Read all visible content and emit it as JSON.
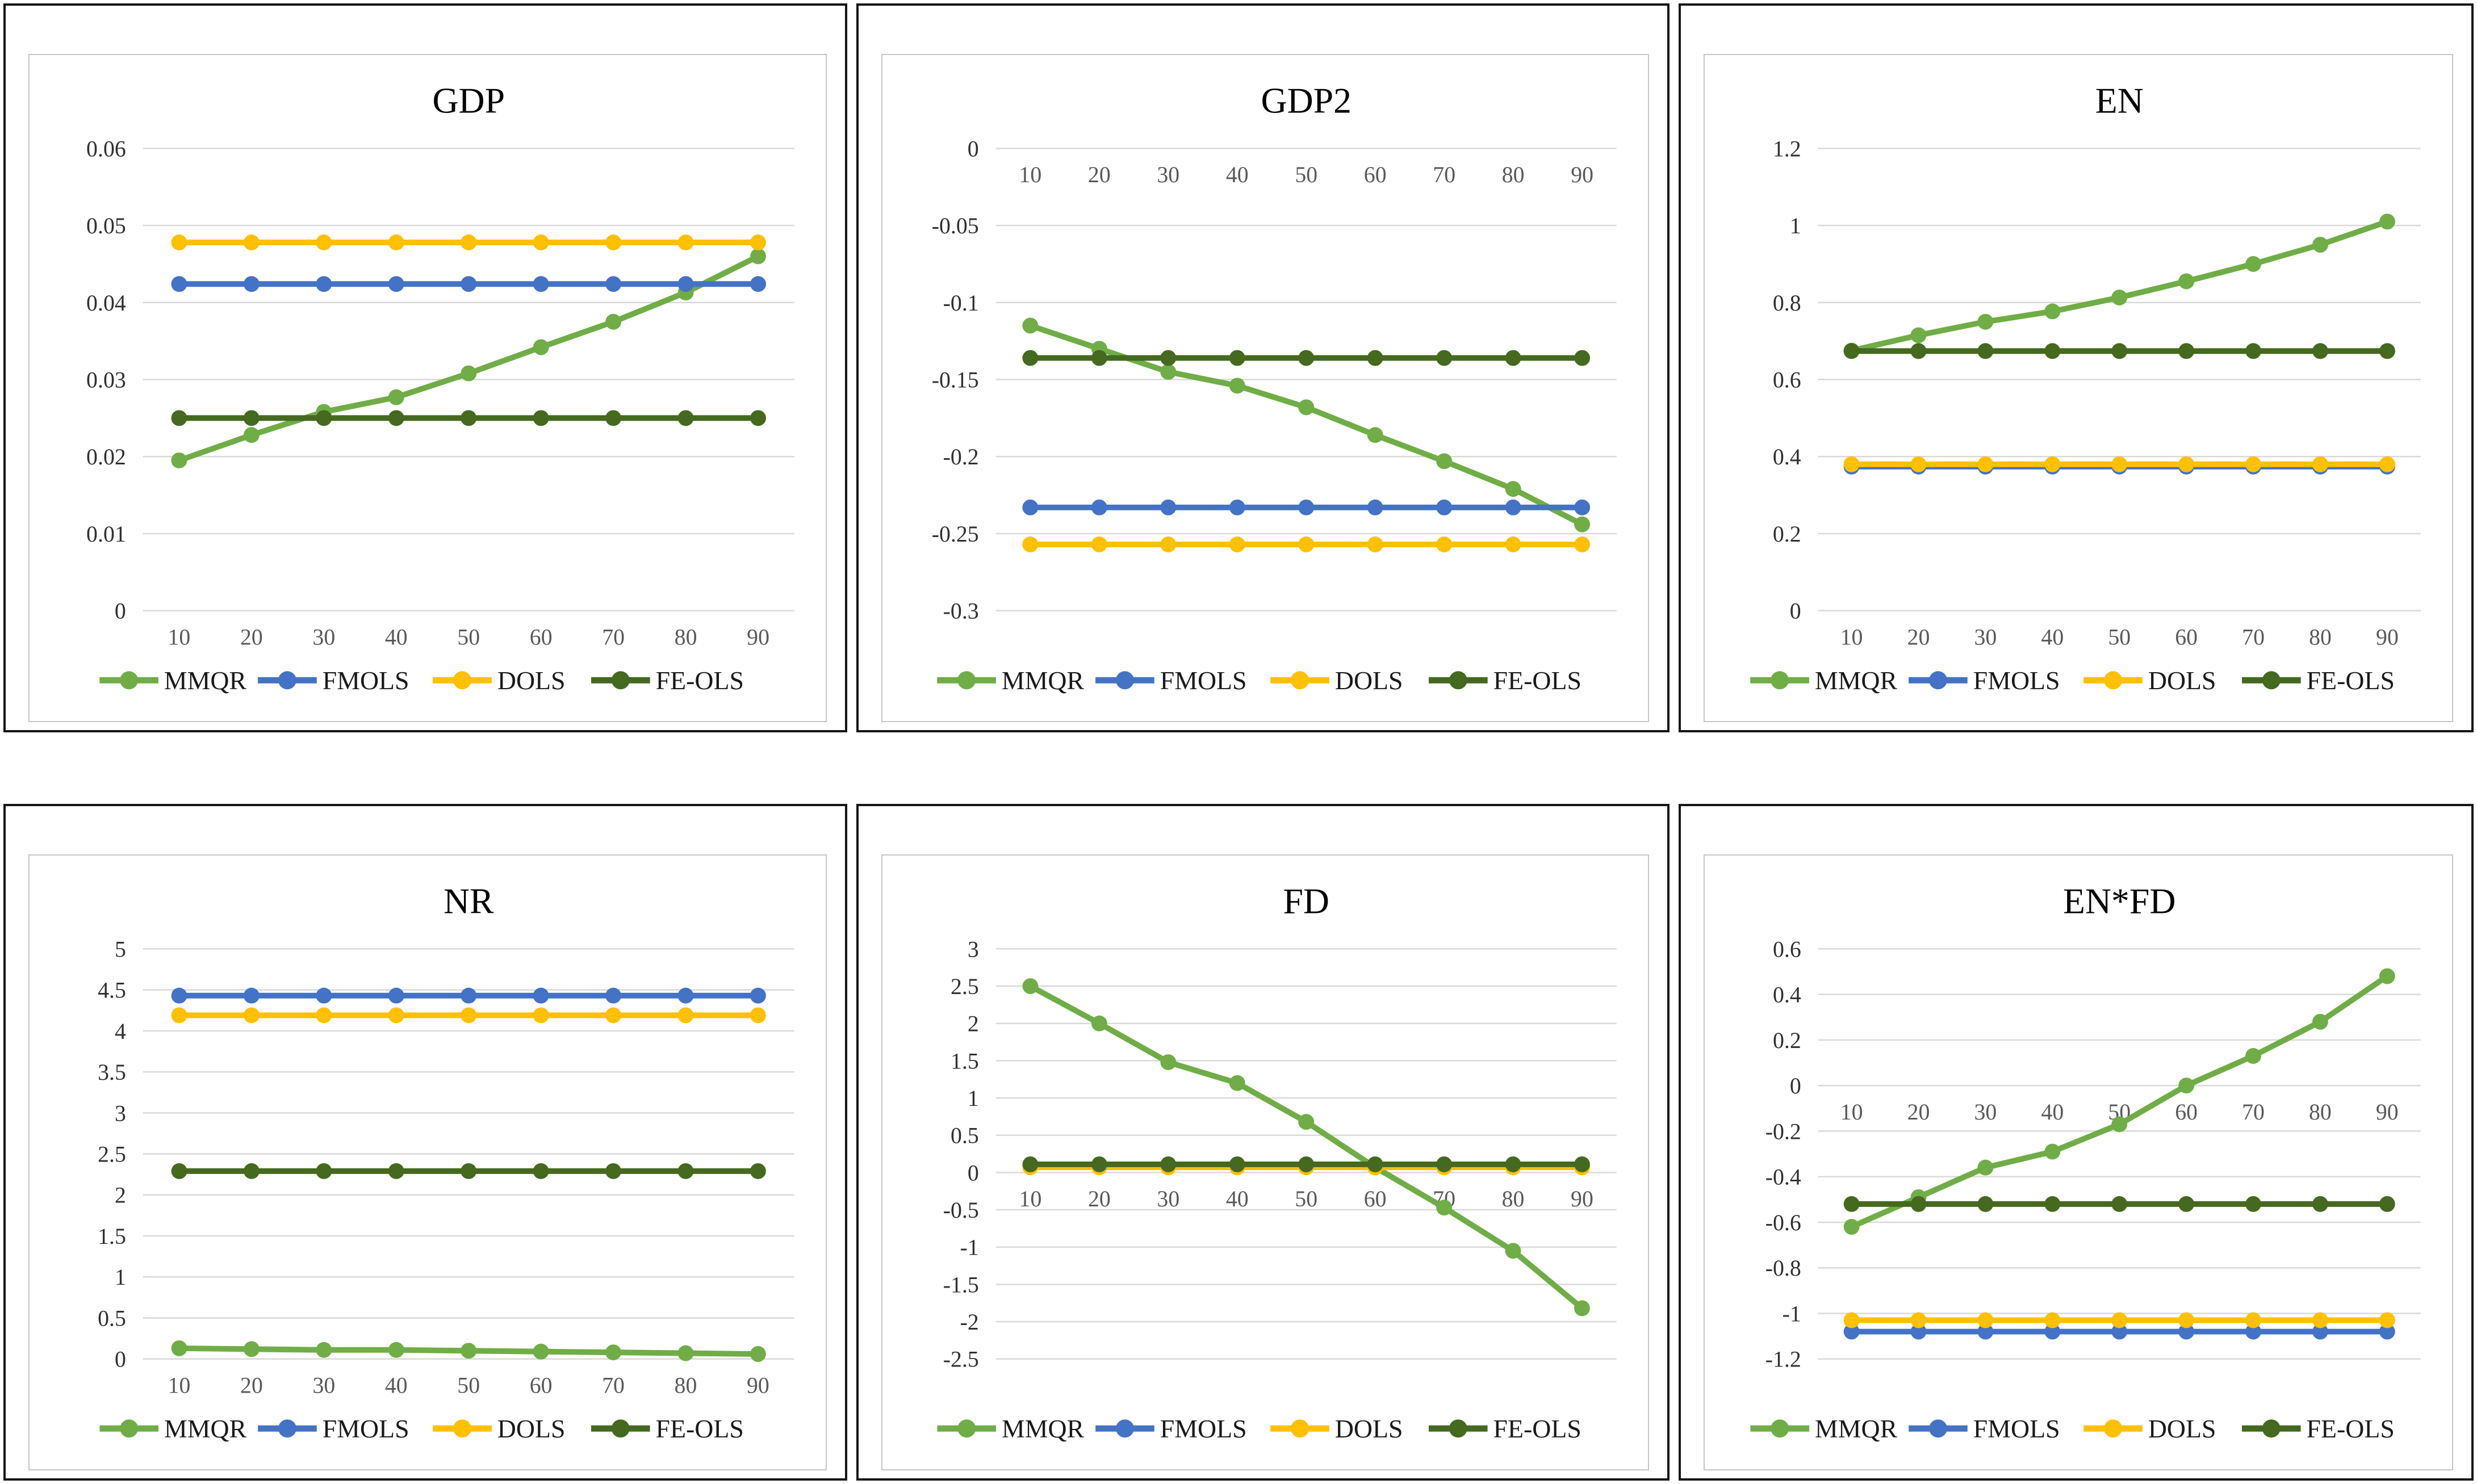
{
  "colors": {
    "MMQR": "#70AD47",
    "FMOLS": "#4472C4",
    "DOLS": "#FFC000",
    "FE-OLS": "#44691F"
  },
  "styles": {
    "background": "#FFFFFF",
    "cell_border": "#161616",
    "chart_border": "#C6C6C6",
    "gridline": "#D9D9D9",
    "y_tick_label": "#303030",
    "x_tick_label": "#595959",
    "title": "#000000",
    "legend_text": "#1A1A1A"
  },
  "legend_entries": [
    "MMQR",
    "FMOLS",
    "DOLS",
    "FE-OLS"
  ],
  "chart_data": [
    {
      "type": "line",
      "title": "GDP",
      "x": [
        10,
        20,
        30,
        40,
        50,
        60,
        70,
        80,
        90
      ],
      "ylim": [
        0,
        0.06
      ],
      "yticks": [
        0.06,
        0.05,
        0.04,
        0.03,
        0.02,
        0.01,
        0
      ],
      "ytick_labels": [
        "0.06",
        "0.05",
        "0.04",
        "0.03",
        "0.02",
        "0.01",
        "0"
      ],
      "grid": true,
      "legend_position": "bottom",
      "x_labels_at_zero_line": true,
      "series": [
        {
          "name": "MMQR",
          "values": [
            0.0195,
            0.0228,
            0.0258,
            0.0277,
            0.0308,
            0.0342,
            0.0375,
            0.0413,
            0.046
          ]
        },
        {
          "name": "FMOLS",
          "values": [
            0.0424,
            0.0424,
            0.0424,
            0.0424,
            0.0424,
            0.0424,
            0.0424,
            0.0424,
            0.0424
          ]
        },
        {
          "name": "DOLS",
          "values": [
            0.0478,
            0.0478,
            0.0478,
            0.0478,
            0.0478,
            0.0478,
            0.0478,
            0.0478,
            0.0478
          ]
        },
        {
          "name": "FE-OLS",
          "values": [
            0.025,
            0.025,
            0.025,
            0.025,
            0.025,
            0.025,
            0.025,
            0.025,
            0.025
          ]
        }
      ]
    },
    {
      "type": "line",
      "title": "GDP2",
      "x": [
        10,
        20,
        30,
        40,
        50,
        60,
        70,
        80,
        90
      ],
      "ylim": [
        -0.3,
        0
      ],
      "yticks": [
        0,
        -0.05,
        -0.1,
        -0.15,
        -0.2,
        -0.25,
        -0.3
      ],
      "ytick_labels": [
        "0",
        "-0.05",
        "-0.1",
        "-0.15",
        "-0.2",
        "-0.25",
        "-0.3"
      ],
      "grid": true,
      "legend_position": "bottom",
      "x_labels_at_zero_line": true,
      "series": [
        {
          "name": "MMQR",
          "values": [
            -0.115,
            -0.13,
            -0.145,
            -0.154,
            -0.168,
            -0.186,
            -0.203,
            -0.221,
            -0.244
          ]
        },
        {
          "name": "FMOLS",
          "values": [
            -0.233,
            -0.233,
            -0.233,
            -0.233,
            -0.233,
            -0.233,
            -0.233,
            -0.233,
            -0.233
          ]
        },
        {
          "name": "DOLS",
          "values": [
            -0.257,
            -0.257,
            -0.257,
            -0.257,
            -0.257,
            -0.257,
            -0.257,
            -0.257,
            -0.257
          ]
        },
        {
          "name": "FE-OLS",
          "values": [
            -0.136,
            -0.136,
            -0.136,
            -0.136,
            -0.136,
            -0.136,
            -0.136,
            -0.136,
            -0.136
          ]
        }
      ]
    },
    {
      "type": "line",
      "title": "EN",
      "x": [
        10,
        20,
        30,
        40,
        50,
        60,
        70,
        80,
        90
      ],
      "ylim": [
        0,
        1.2
      ],
      "yticks": [
        1.2,
        1,
        0.8,
        0.6,
        0.4,
        0.2,
        0
      ],
      "ytick_labels": [
        "1.2",
        "1",
        "0.8",
        "0.6",
        "0.4",
        "0.2",
        "0"
      ],
      "grid": true,
      "legend_position": "bottom",
      "x_labels_at_zero_line": true,
      "series": [
        {
          "name": "MMQR",
          "values": [
            0.675,
            0.715,
            0.75,
            0.777,
            0.813,
            0.855,
            0.9,
            0.95,
            1.01
          ]
        },
        {
          "name": "FMOLS",
          "values": [
            0.374,
            0.374,
            0.374,
            0.374,
            0.374,
            0.374,
            0.374,
            0.374,
            0.374
          ]
        },
        {
          "name": "DOLS",
          "values": [
            0.38,
            0.38,
            0.38,
            0.38,
            0.38,
            0.38,
            0.38,
            0.38,
            0.38
          ]
        },
        {
          "name": "FE-OLS",
          "values": [
            0.674,
            0.674,
            0.674,
            0.674,
            0.674,
            0.674,
            0.674,
            0.674,
            0.674
          ]
        }
      ]
    },
    {
      "type": "line",
      "title": "NR",
      "x": [
        10,
        20,
        30,
        40,
        50,
        60,
        70,
        80,
        90
      ],
      "ylim": [
        0,
        5
      ],
      "yticks": [
        5,
        4.5,
        4,
        3.5,
        3,
        2.5,
        2,
        1.5,
        1,
        0.5,
        0
      ],
      "ytick_labels": [
        "5",
        "4.5",
        "4",
        "3.5",
        "3",
        "2.5",
        "2",
        "1.5",
        "1",
        "0.5",
        "0"
      ],
      "grid": true,
      "legend_position": "bottom",
      "x_labels_at_zero_line": true,
      "series": [
        {
          "name": "MMQR",
          "values": [
            0.13,
            0.12,
            0.11,
            0.11,
            0.1,
            0.09,
            0.08,
            0.07,
            0.06
          ]
        },
        {
          "name": "FMOLS",
          "values": [
            4.43,
            4.43,
            4.43,
            4.43,
            4.43,
            4.43,
            4.43,
            4.43,
            4.43
          ]
        },
        {
          "name": "DOLS",
          "values": [
            4.19,
            4.19,
            4.19,
            4.19,
            4.19,
            4.19,
            4.19,
            4.19,
            4.19
          ]
        },
        {
          "name": "FE-OLS",
          "values": [
            2.29,
            2.29,
            2.29,
            2.29,
            2.29,
            2.29,
            2.29,
            2.29,
            2.29
          ]
        }
      ]
    },
    {
      "type": "line",
      "title": "FD",
      "x": [
        10,
        20,
        30,
        40,
        50,
        60,
        70,
        80,
        90
      ],
      "ylim": [
        -2.5,
        3
      ],
      "yticks": [
        3,
        2.5,
        2,
        1.5,
        1,
        0.5,
        0,
        -0.5,
        -1,
        -1.5,
        -2,
        -2.5
      ],
      "ytick_labels": [
        "3",
        "2.5",
        "2",
        "1.5",
        "1",
        "0.5",
        "0",
        "-0.5",
        "-1",
        "-1.5",
        "-2",
        "-2.5"
      ],
      "grid": true,
      "legend_position": "bottom",
      "x_labels_at_zero_line": true,
      "series": [
        {
          "name": "MMQR",
          "values": [
            2.5,
            2.0,
            1.48,
            1.2,
            0.68,
            0.07,
            -0.47,
            -1.05,
            -1.82
          ]
        },
        {
          "name": "FMOLS",
          "values": [
            0.08,
            0.08,
            0.08,
            0.08,
            0.08,
            0.08,
            0.08,
            0.08,
            0.08
          ]
        },
        {
          "name": "DOLS",
          "values": [
            0.07,
            0.07,
            0.07,
            0.07,
            0.07,
            0.07,
            0.07,
            0.07,
            0.07
          ]
        },
        {
          "name": "FE-OLS",
          "values": [
            0.11,
            0.11,
            0.11,
            0.11,
            0.11,
            0.11,
            0.11,
            0.11,
            0.11
          ]
        }
      ]
    },
    {
      "type": "line",
      "title": "EN*FD",
      "x": [
        10,
        20,
        30,
        40,
        50,
        60,
        70,
        80,
        90
      ],
      "ylim": [
        -1.2,
        0.6
      ],
      "yticks": [
        0.6,
        0.4,
        0.2,
        0,
        -0.2,
        -0.4,
        -0.6,
        -0.8,
        -1,
        -1.2
      ],
      "ytick_labels": [
        "0.6",
        "0.4",
        "0.2",
        "0",
        "-0.2",
        "-0.4",
        "-0.6",
        "-0.8",
        "-1",
        "-1.2"
      ],
      "grid": true,
      "legend_position": "bottom",
      "x_labels_at_zero_line": true,
      "series": [
        {
          "name": "MMQR",
          "values": [
            -0.62,
            -0.49,
            -0.36,
            -0.29,
            -0.17,
            0.0,
            0.13,
            0.28,
            0.48
          ]
        },
        {
          "name": "FMOLS",
          "values": [
            -1.08,
            -1.08,
            -1.08,
            -1.08,
            -1.08,
            -1.08,
            -1.08,
            -1.08,
            -1.08
          ]
        },
        {
          "name": "DOLS",
          "values": [
            -1.03,
            -1.03,
            -1.03,
            -1.03,
            -1.03,
            -1.03,
            -1.03,
            -1.03,
            -1.03
          ]
        },
        {
          "name": "FE-OLS",
          "values": [
            -0.52,
            -0.52,
            -0.52,
            -0.52,
            -0.52,
            -0.52,
            -0.52,
            -0.52,
            -0.52
          ]
        }
      ]
    }
  ]
}
